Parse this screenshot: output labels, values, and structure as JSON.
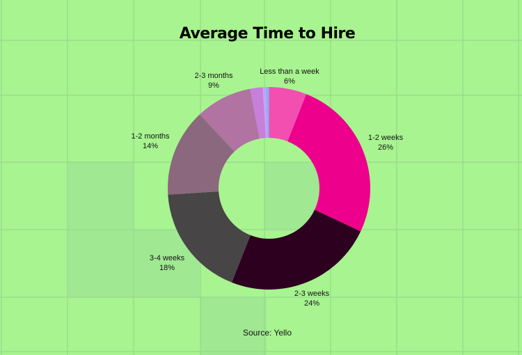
{
  "chart_data": {
    "type": "pie",
    "donut": true,
    "title": "Average Time to Hire",
    "source": "Source: Yello",
    "slices": [
      {
        "label": "Less than a week",
        "value": 6,
        "value_label": "6%",
        "color": "#f34fb0"
      },
      {
        "label": "1-2 weeks",
        "value": 26,
        "value_label": "26%",
        "color": "#ec008c"
      },
      {
        "label": "2-3 weeks",
        "value": 24,
        "value_label": "24%",
        "color": "#2e0020"
      },
      {
        "label": "3-4 weeks",
        "value": 18,
        "value_label": "18%",
        "color": "#484547"
      },
      {
        "label": "1-2 months",
        "value": 14,
        "value_label": "14%",
        "color": "#8b687e"
      },
      {
        "label": "2-3 months",
        "value": 9,
        "value_label": "9%",
        "color": "#b073a2"
      },
      {
        "label": "",
        "value": 2,
        "color": "#c77fd9"
      },
      {
        "label": "",
        "value": 0.5,
        "color": "#c8a0f8"
      },
      {
        "label": "",
        "value": 0.5,
        "color": "#8ab0f8"
      }
    ],
    "start_angle": "top",
    "direction": "clockwise",
    "background": "#a8f490"
  }
}
